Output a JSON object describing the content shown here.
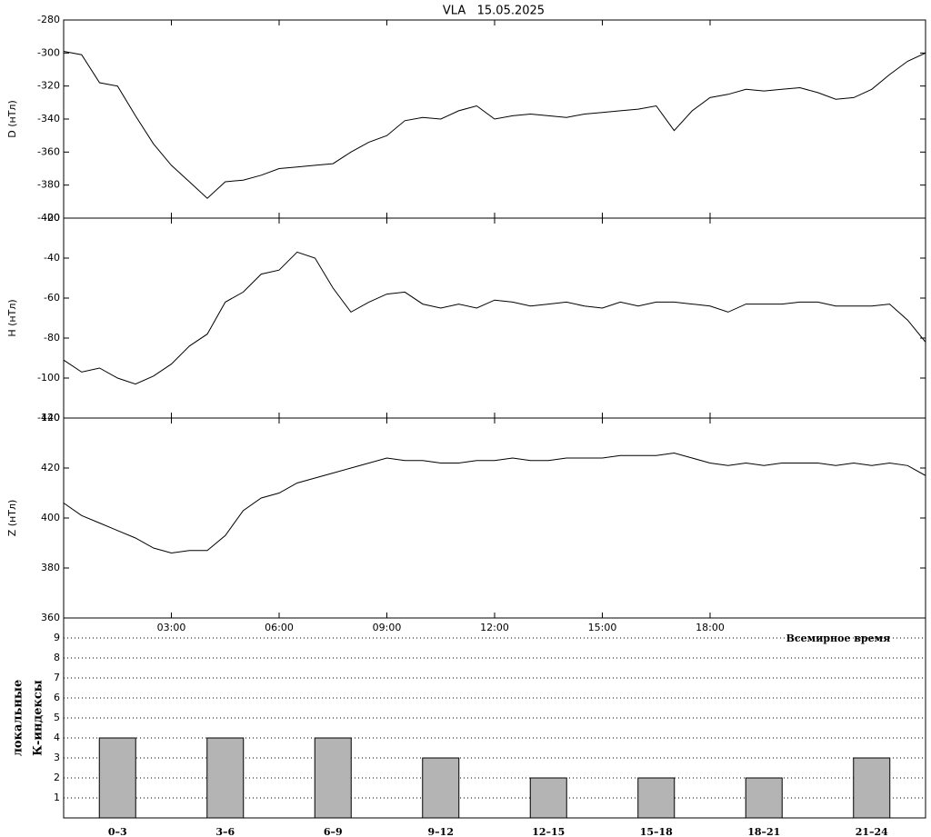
{
  "chart_data": [
    {
      "type": "line",
      "title": "VLA   15.05.2025",
      "ylabel": "D (нТл)",
      "color": "#000000",
      "x": [
        0,
        0.5,
        1,
        1.5,
        2,
        2.5,
        3,
        3.5,
        4,
        4.5,
        5,
        5.5,
        6,
        6.5,
        7,
        7.5,
        8,
        8.5,
        9,
        9.5,
        10,
        10.5,
        11,
        11.5,
        12,
        12.5,
        13,
        13.5,
        14,
        14.5,
        15,
        15.5,
        16,
        16.5,
        17,
        17.5,
        18,
        18.5,
        19,
        19.5,
        20,
        20.5,
        21,
        21.5,
        22,
        22.5,
        23,
        23.5,
        24
      ],
      "values": [
        -299,
        -301,
        -318,
        -320,
        -338,
        -355,
        -368,
        -378,
        -388,
        -378,
        -377,
        -374,
        -370,
        -369,
        -368,
        -367,
        -360,
        -354,
        -350,
        -341,
        -339,
        -340,
        -335,
        -332,
        -340,
        -338,
        -337,
        -338,
        -339,
        -337,
        -336,
        -335,
        -334,
        -332,
        -347,
        -335,
        -327,
        -325,
        -322,
        -323,
        -322,
        -321,
        -324,
        -328,
        -327,
        -322,
        -313,
        -305,
        -300
      ],
      "xlim": [
        0,
        24
      ],
      "ylim": [
        -400,
        -280
      ],
      "yticks": [
        -400,
        -380,
        -360,
        -340,
        -320,
        -300,
        -280
      ]
    },
    {
      "type": "line",
      "ylabel": "H (нТл)",
      "color": "#000000",
      "x": [
        0,
        0.5,
        1,
        1.5,
        2,
        2.5,
        3,
        3.5,
        4,
        4.5,
        5,
        5.5,
        6,
        6.5,
        7,
        7.5,
        8,
        8.5,
        9,
        9.5,
        10,
        10.5,
        11,
        11.5,
        12,
        12.5,
        13,
        13.5,
        14,
        14.5,
        15,
        15.5,
        16,
        16.5,
        17,
        17.5,
        18,
        18.5,
        19,
        19.5,
        20,
        20.5,
        21,
        21.5,
        22,
        22.5,
        23,
        23.5,
        24
      ],
      "values": [
        -91,
        -97,
        -95,
        -100,
        -103,
        -99,
        -93,
        -84,
        -78,
        -62,
        -57,
        -48,
        -46,
        -37,
        -40,
        -55,
        -67,
        -62,
        -58,
        -57,
        -63,
        -65,
        -63,
        -65,
        -61,
        -62,
        -64,
        -63,
        -62,
        -64,
        -65,
        -62,
        -64,
        -62,
        -62,
        -63,
        -64,
        -67,
        -63,
        -63,
        -63,
        -62,
        -62,
        -64,
        -64,
        -64,
        -63,
        -71,
        -82
      ],
      "xlim": [
        0,
        24
      ],
      "ylim": [
        -120,
        -20
      ],
      "yticks": [
        -120,
        -100,
        -80,
        -60,
        -40,
        -20
      ]
    },
    {
      "type": "line",
      "ylabel": "Z (нТл)",
      "color": "#000000",
      "x": [
        0,
        0.5,
        1,
        1.5,
        2,
        2.5,
        3,
        3.5,
        4,
        4.5,
        5,
        5.5,
        6,
        6.5,
        7,
        7.5,
        8,
        8.5,
        9,
        9.5,
        10,
        10.5,
        11,
        11.5,
        12,
        12.5,
        13,
        13.5,
        14,
        14.5,
        15,
        15.5,
        16,
        16.5,
        17,
        17.5,
        18,
        18.5,
        19,
        19.5,
        20,
        20.5,
        21,
        21.5,
        22,
        22.5,
        23,
        23.5,
        24
      ],
      "values": [
        406,
        401,
        398,
        395,
        392,
        388,
        386,
        387,
        387,
        393,
        403,
        408,
        410,
        414,
        416,
        418,
        420,
        422,
        424,
        423,
        423,
        422,
        422,
        423,
        423,
        424,
        423,
        423,
        424,
        424,
        424,
        425,
        425,
        425,
        426,
        424,
        422,
        421,
        422,
        421,
        422,
        422,
        422,
        421,
        422,
        421,
        422,
        421,
        417
      ],
      "xlim": [
        0,
        24
      ],
      "ylim": [
        360,
        440
      ],
      "yticks": [
        360,
        380,
        400,
        420,
        440
      ],
      "xticks": [
        {
          "value": 3,
          "label": "03:00"
        },
        {
          "value": 6,
          "label": "06:00"
        },
        {
          "value": 9,
          "label": "09:00"
        },
        {
          "value": 12,
          "label": "12:00"
        },
        {
          "value": 15,
          "label": "15:00"
        },
        {
          "value": 18,
          "label": "18:00"
        }
      ]
    },
    {
      "type": "bar",
      "ylabel": [
        "локальные",
        "К-индексы"
      ],
      "annotation": "Всемирное время",
      "color": "#b4b4b4",
      "categories": [
        "0–3",
        "3–6",
        "6–9",
        "9–12",
        "12–15",
        "15–18",
        "18–21",
        "21–24"
      ],
      "values": [
        4,
        4,
        4,
        3,
        2,
        2,
        2,
        3
      ],
      "ylim": [
        0,
        10
      ],
      "yticks": [
        1,
        2,
        3,
        4,
        5,
        6,
        7,
        8,
        9
      ],
      "grid": true
    }
  ]
}
